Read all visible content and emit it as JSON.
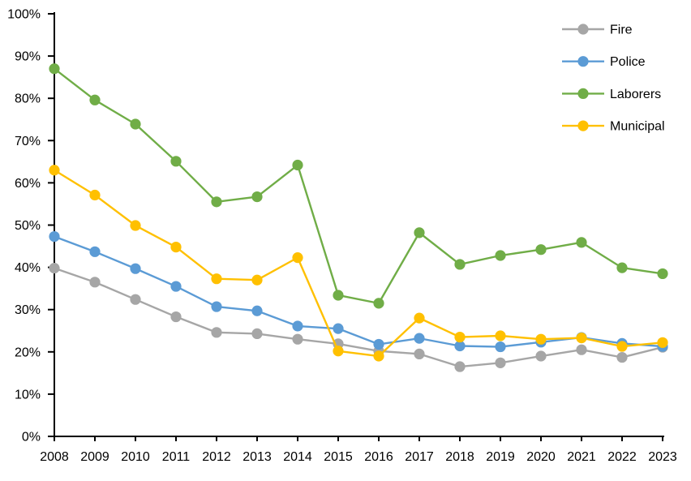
{
  "chart_data": {
    "type": "line",
    "x": [
      "2008",
      "2009",
      "2010",
      "2011",
      "2012",
      "2013",
      "2014",
      "2015",
      "2016",
      "2017",
      "2018",
      "2019",
      "2020",
      "2021",
      "2022",
      "2023"
    ],
    "series": [
      {
        "name": "Fire",
        "color": "#A6A6A6",
        "values": [
          39.8,
          36.5,
          32.4,
          28.3,
          24.6,
          24.3,
          23.0,
          21.9,
          20.2,
          19.5,
          16.5,
          17.4,
          19.0,
          20.5,
          18.7,
          21.1
        ]
      },
      {
        "name": "Police",
        "color": "#5B9BD5",
        "values": [
          47.3,
          43.7,
          39.7,
          35.5,
          30.7,
          29.7,
          26.1,
          25.5,
          21.8,
          23.2,
          21.4,
          21.2,
          22.3,
          23.4,
          22.0,
          21.3
        ]
      },
      {
        "name": "Laborers",
        "color": "#70AD47",
        "values": [
          87.0,
          79.6,
          73.9,
          65.1,
          55.5,
          56.7,
          64.2,
          33.4,
          31.5,
          48.2,
          40.7,
          42.8,
          44.2,
          45.9,
          39.9,
          38.5
        ]
      },
      {
        "name": "Municipal",
        "color": "#FFC000",
        "values": [
          63.0,
          57.1,
          49.9,
          44.8,
          37.3,
          37.0,
          42.3,
          20.2,
          19.0,
          28.0,
          23.5,
          23.8,
          23.0,
          23.3,
          21.3,
          22.2
        ]
      }
    ],
    "ylim": [
      0,
      100
    ],
    "ytick_step": 10,
    "ytick_labels": [
      "0%",
      "10%",
      "20%",
      "30%",
      "40%",
      "50%",
      "60%",
      "70%",
      "80%",
      "90%",
      "100%"
    ],
    "legend": [
      "Fire",
      "Police",
      "Laborers",
      "Municipal"
    ],
    "legend_position": "top-right",
    "grid": false,
    "axis_color": "#000000"
  }
}
